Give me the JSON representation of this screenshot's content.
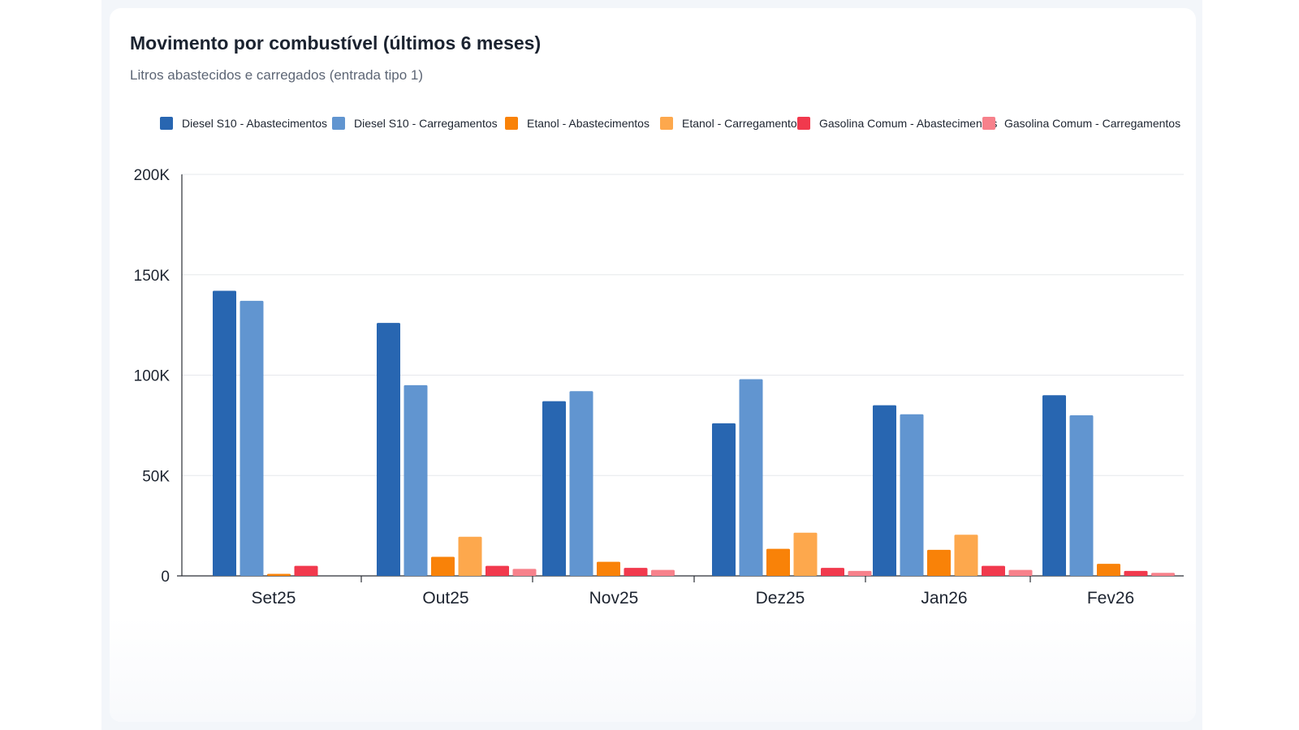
{
  "card": {
    "title": "Movimento por combustível (últimos 6 meses)",
    "subtitle": "Litros abastecidos e carregados (entrada tipo 1)"
  },
  "chart_data": {
    "type": "bar",
    "title": "Movimento por combustível (últimos 6 meses)",
    "subtitle": "Litros abastecidos e carregados (entrada tipo 1)",
    "xlabel": "",
    "ylabel": "",
    "ylim": [
      0,
      200000
    ],
    "yticks": [
      0,
      50000,
      100000,
      150000,
      200000
    ],
    "ytick_labels": [
      "0",
      "50K",
      "100K",
      "150K",
      "200K"
    ],
    "grid": true,
    "legend_position": "top",
    "categories": [
      "Set25",
      "Out25",
      "Nov25",
      "Dez25",
      "Jan26",
      "Fev26"
    ],
    "series": [
      {
        "name": "Diesel S10 - Abastecimentos",
        "color": "#2866b1",
        "values": [
          142000,
          126000,
          87000,
          76000,
          85000,
          90000
        ]
      },
      {
        "name": "Diesel S10 - Carregamentos",
        "color": "#6195d0",
        "values": [
          137000,
          95000,
          92000,
          98000,
          80500,
          80000
        ]
      },
      {
        "name": "Etanol - Abastecimentos",
        "color": "#f98208",
        "values": [
          1000,
          9500,
          7000,
          13500,
          13000,
          6000
        ]
      },
      {
        "name": "Etanol - Carregamentos",
        "color": "#fda84d",
        "values": [
          0,
          19500,
          0,
          21500,
          20500,
          0
        ]
      },
      {
        "name": "Gasolina Comum - Abastecimentos",
        "color": "#f1394d",
        "values": [
          5000,
          5000,
          4000,
          4000,
          5000,
          2500
        ]
      },
      {
        "name": "Gasolina Comum - Carregamentos",
        "color": "#f7818b",
        "values": [
          0,
          3500,
          3000,
          2500,
          3000,
          1500
        ]
      }
    ]
  }
}
